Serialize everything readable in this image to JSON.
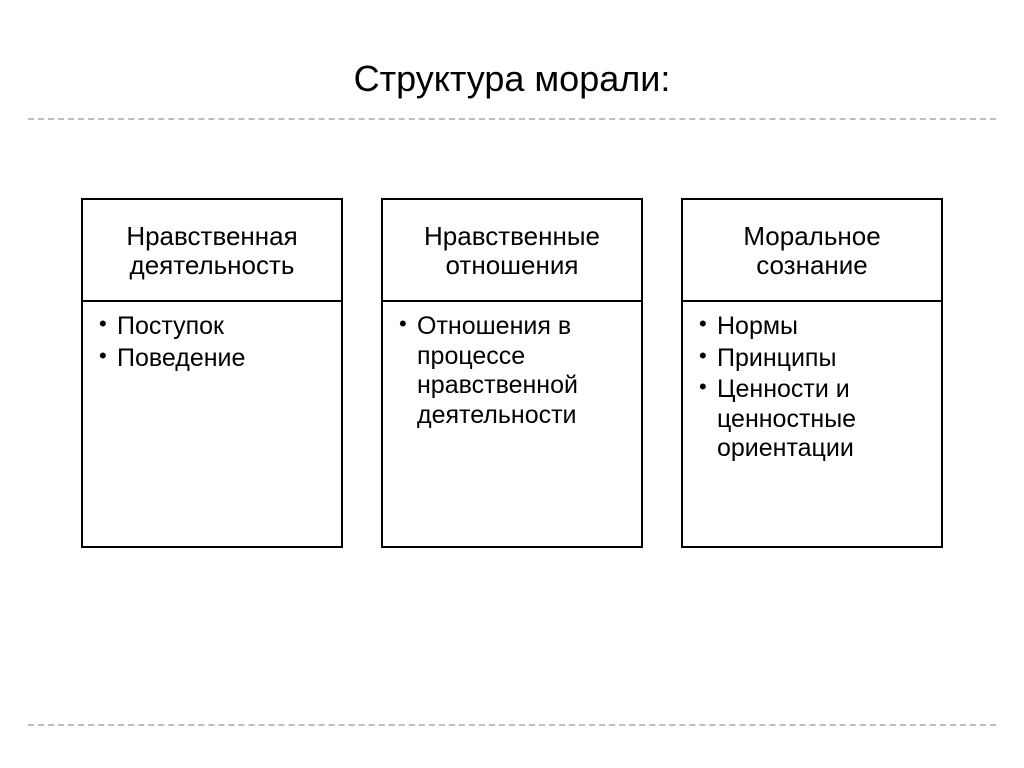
{
  "title": "Структура морали:",
  "divider_color": "#bfbfbf",
  "columns": [
    {
      "header": "Нравственная деятельность",
      "items": [
        "Поступок",
        "Поведение"
      ]
    },
    {
      "header": "Нравственные отношения",
      "items": [
        "Отношения в процессе нравственной деятельности"
      ]
    },
    {
      "header": "Моральное сознание",
      "items": [
        "Нормы",
        "Принципы",
        "Ценности и ценностные ориентации"
      ]
    }
  ]
}
